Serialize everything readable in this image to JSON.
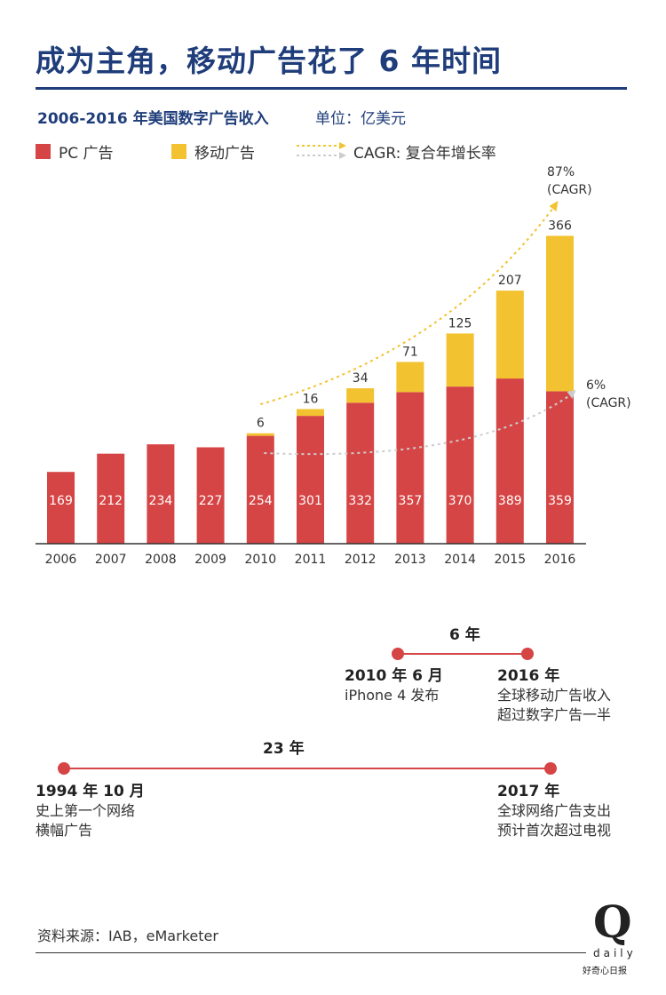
{
  "header": {
    "title": "成为主角，移动广告花了 6 年时间",
    "subtitle": "2006-2016 年美国数字广告收入",
    "unit": "单位：亿美元"
  },
  "legend": {
    "pc": "PC 广告",
    "mobile": "移动广告",
    "cagr": "CAGR: 复合年增长率"
  },
  "colors": {
    "pc": "#d64545",
    "mobile": "#f2c230",
    "accent": "#1f3d7a",
    "pc_trend": "#cccccc",
    "mobile_trend": "#f2c230"
  },
  "chart_data": {
    "type": "bar",
    "stacked": true,
    "categories": [
      "2006",
      "2007",
      "2008",
      "2009",
      "2010",
      "2011",
      "2012",
      "2013",
      "2014",
      "2015",
      "2016"
    ],
    "series": [
      {
        "name": "PC 广告",
        "values": [
          169,
          212,
          234,
          227,
          254,
          301,
          332,
          357,
          370,
          389,
          359
        ]
      },
      {
        "name": "移动广告",
        "values": [
          0,
          0,
          0,
          0,
          6,
          16,
          34,
          71,
          125,
          207,
          366
        ]
      }
    ],
    "annotations": [
      {
        "series": "移动广告",
        "text_line1": "87%",
        "text_line2": "(CAGR)"
      },
      {
        "series": "PC 广告",
        "text_line1": "6%",
        "text_line2": "(CAGR)"
      }
    ],
    "ylim": [
      0,
      760
    ],
    "grid": false,
    "legend_position": "top-left"
  },
  "timeline": {
    "short": {
      "span": "6 年",
      "start_head": "2010 年 6 月",
      "start_body": [
        "iPhone 4 发布"
      ],
      "end_head": "2016 年",
      "end_body": [
        "全球移动广告收入",
        "超过数字广告一半"
      ]
    },
    "long": {
      "span": "23 年",
      "start_head": "1994 年 10 月",
      "start_body": [
        "史上第一个网络",
        "横幅广告"
      ],
      "end_head": "2017 年",
      "end_body": [
        "全球网络广告支出",
        "预计首次超过电视"
      ]
    }
  },
  "footer": {
    "source": "资料来源：IAB，eMarketer",
    "logo_letter": "Q",
    "logo_word": "daily",
    "logo_cn": "好奇心日报"
  }
}
